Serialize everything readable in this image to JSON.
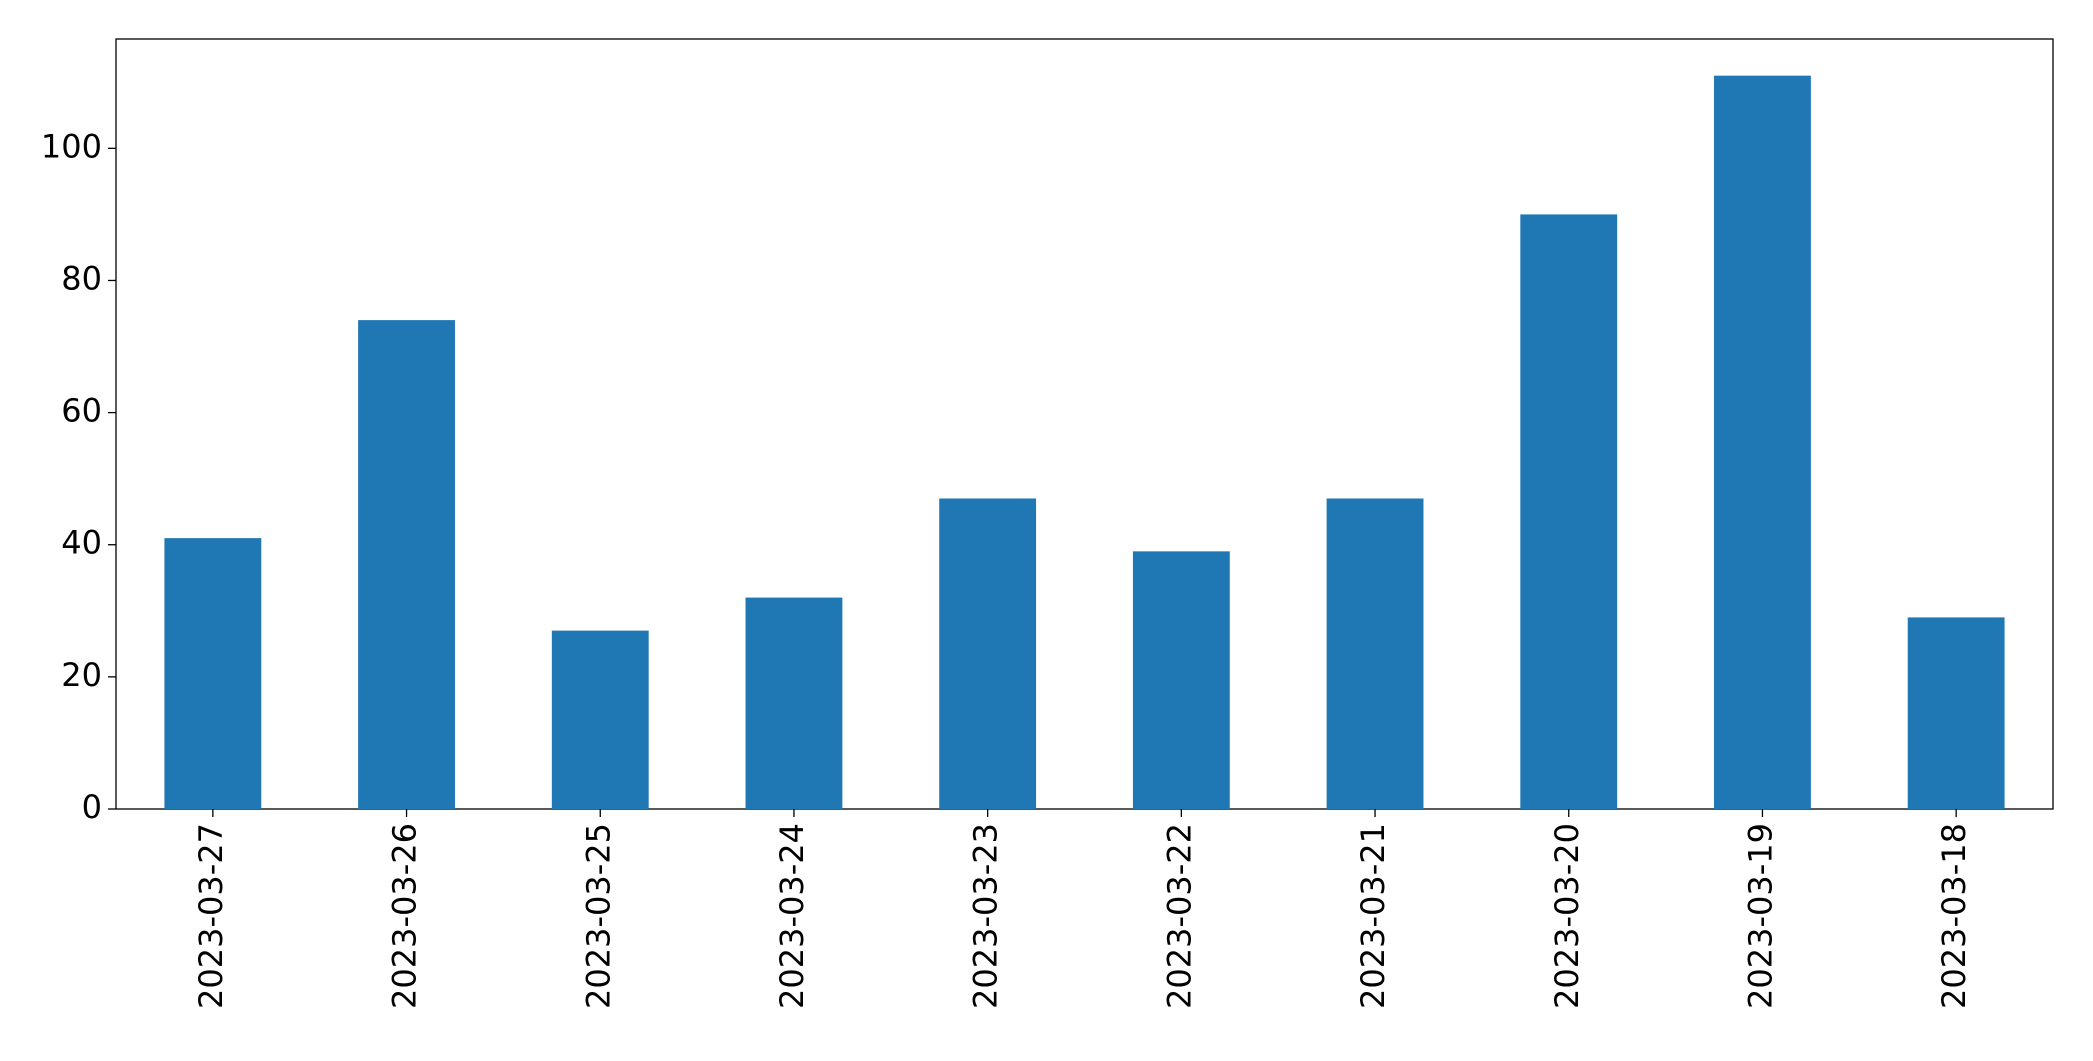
{
  "chart_data": {
    "type": "bar",
    "categories": [
      "2023-03-27",
      "2023-03-26",
      "2023-03-25",
      "2023-03-24",
      "2023-03-23",
      "2023-03-22",
      "2023-03-21",
      "2023-03-20",
      "2023-03-19",
      "2023-03-18"
    ],
    "values": [
      41,
      74,
      27,
      32,
      47,
      39,
      47,
      90,
      111,
      29
    ],
    "color": "#1f77b4",
    "ylim": [
      0,
      116.55
    ],
    "yticks": [
      0,
      20,
      40,
      60,
      80,
      100
    ],
    "grid": false
  }
}
